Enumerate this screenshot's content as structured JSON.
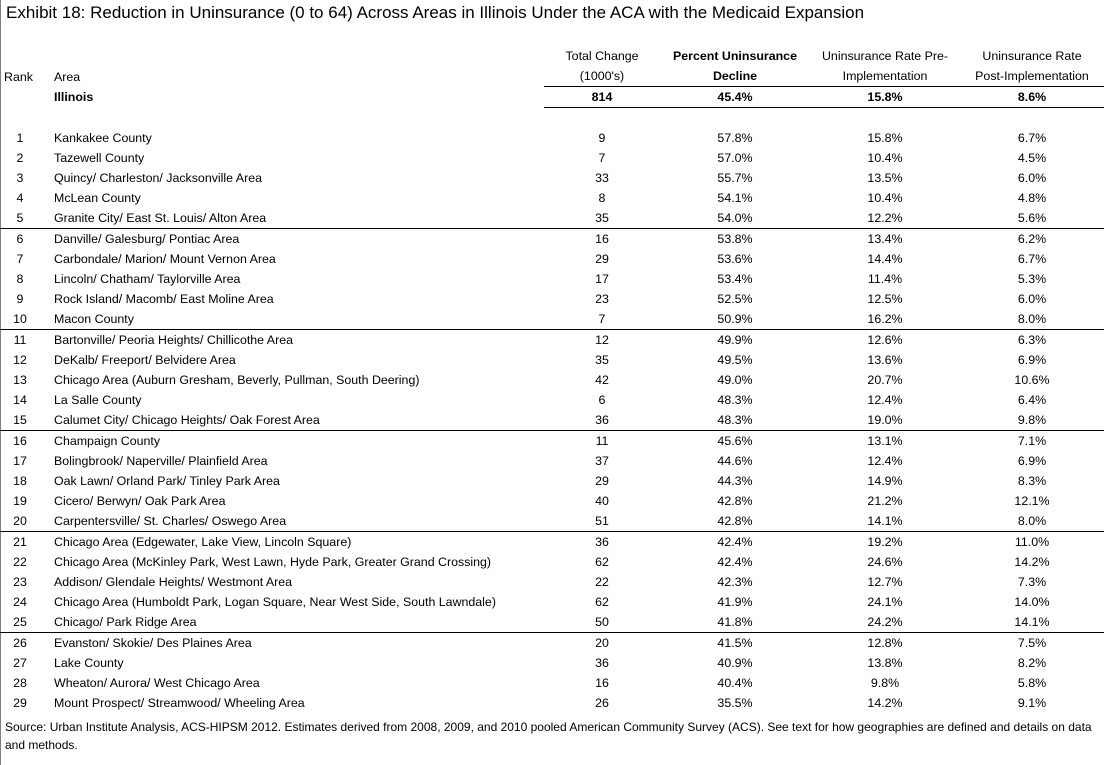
{
  "title": "Exhibit 18: Reduction in Uninsurance (0 to 64) Across Areas in Illinois Under the ACA with the Medicaid Expansion",
  "columns": {
    "rank": "Rank",
    "area": "Area",
    "total_change_1": "Total Change",
    "total_change_2": "(1000's)",
    "pct_decline_1": "Percent Uninsurance",
    "pct_decline_2": "Decline",
    "pre_1": "Uninsurance Rate Pre-",
    "pre_2": "Implementation",
    "post_1": "Uninsurance Rate",
    "post_2": "Post-Implementation"
  },
  "state_row": {
    "area": "Illinois",
    "total_change": "814",
    "pct_decline": "45.4%",
    "pre": "15.8%",
    "post": "8.6%"
  },
  "rows": [
    {
      "rank": "1",
      "area": "Kankakee County",
      "total_change": "9",
      "pct_decline": "57.8%",
      "pre": "15.8%",
      "post": "6.7%"
    },
    {
      "rank": "2",
      "area": "Tazewell County",
      "total_change": "7",
      "pct_decline": "57.0%",
      "pre": "10.4%",
      "post": "4.5%"
    },
    {
      "rank": "3",
      "area": "Quincy/ Charleston/ Jacksonville Area",
      "total_change": "33",
      "pct_decline": "55.7%",
      "pre": "13.5%",
      "post": "6.0%"
    },
    {
      "rank": "4",
      "area": "McLean County",
      "total_change": "8",
      "pct_decline": "54.1%",
      "pre": "10.4%",
      "post": "4.8%"
    },
    {
      "rank": "5",
      "area": "Granite City/ East St. Louis/ Alton Area",
      "total_change": "35",
      "pct_decline": "54.0%",
      "pre": "12.2%",
      "post": "5.6%"
    },
    {
      "rank": "6",
      "area": "Danville/ Galesburg/ Pontiac Area",
      "total_change": "16",
      "pct_decline": "53.8%",
      "pre": "13.4%",
      "post": "6.2%"
    },
    {
      "rank": "7",
      "area": "Carbondale/ Marion/ Mount Vernon Area",
      "total_change": "29",
      "pct_decline": "53.6%",
      "pre": "14.4%",
      "post": "6.7%"
    },
    {
      "rank": "8",
      "area": "Lincoln/ Chatham/ Taylorville Area",
      "total_change": "17",
      "pct_decline": "53.4%",
      "pre": "11.4%",
      "post": "5.3%"
    },
    {
      "rank": "9",
      "area": "Rock Island/ Macomb/ East Moline Area",
      "total_change": "23",
      "pct_decline": "52.5%",
      "pre": "12.5%",
      "post": "6.0%"
    },
    {
      "rank": "10",
      "area": "Macon County",
      "total_change": "7",
      "pct_decline": "50.9%",
      "pre": "16.2%",
      "post": "8.0%"
    },
    {
      "rank": "11",
      "area": "Bartonville/ Peoria Heights/ Chillicothe Area",
      "total_change": "12",
      "pct_decline": "49.9%",
      "pre": "12.6%",
      "post": "6.3%"
    },
    {
      "rank": "12",
      "area": "DeKalb/ Freeport/ Belvidere Area",
      "total_change": "35",
      "pct_decline": "49.5%",
      "pre": "13.6%",
      "post": "6.9%"
    },
    {
      "rank": "13",
      "area": "Chicago Area (Auburn Gresham, Beverly, Pullman, South Deering)",
      "total_change": "42",
      "pct_decline": "49.0%",
      "pre": "20.7%",
      "post": "10.6%"
    },
    {
      "rank": "14",
      "area": "La Salle County",
      "total_change": "6",
      "pct_decline": "48.3%",
      "pre": "12.4%",
      "post": "6.4%"
    },
    {
      "rank": "15",
      "area": "Calumet City/ Chicago Heights/ Oak Forest Area",
      "total_change": "36",
      "pct_decline": "48.3%",
      "pre": "19.0%",
      "post": "9.8%"
    },
    {
      "rank": "16",
      "area": "Champaign County",
      "total_change": "11",
      "pct_decline": "45.6%",
      "pre": "13.1%",
      "post": "7.1%"
    },
    {
      "rank": "17",
      "area": "Bolingbrook/ Naperville/ Plainfield Area",
      "total_change": "37",
      "pct_decline": "44.6%",
      "pre": "12.4%",
      "post": "6.9%"
    },
    {
      "rank": "18",
      "area": "Oak Lawn/ Orland Park/ Tinley Park Area",
      "total_change": "29",
      "pct_decline": "44.3%",
      "pre": "14.9%",
      "post": "8.3%"
    },
    {
      "rank": "19",
      "area": "Cicero/ Berwyn/ Oak Park Area",
      "total_change": "40",
      "pct_decline": "42.8%",
      "pre": "21.2%",
      "post": "12.1%"
    },
    {
      "rank": "20",
      "area": "Carpentersville/ St. Charles/ Oswego Area",
      "total_change": "51",
      "pct_decline": "42.8%",
      "pre": "14.1%",
      "post": "8.0%"
    },
    {
      "rank": "21",
      "area": "Chicago Area (Edgewater, Lake View, Lincoln Square)",
      "total_change": "36",
      "pct_decline": "42.4%",
      "pre": "19.2%",
      "post": "11.0%"
    },
    {
      "rank": "22",
      "area": "Chicago Area (McKinley Park, West Lawn, Hyde Park, Greater Grand Crossing)",
      "total_change": "62",
      "pct_decline": "42.4%",
      "pre": "24.6%",
      "post": "14.2%"
    },
    {
      "rank": "23",
      "area": "Addison/ Glendale Heights/ Westmont Area",
      "total_change": "22",
      "pct_decline": "42.3%",
      "pre": "12.7%",
      "post": "7.3%"
    },
    {
      "rank": "24",
      "area": "Chicago Area (Humboldt Park, Logan Square, Near West Side, South Lawndale)",
      "total_change": "62",
      "pct_decline": "41.9%",
      "pre": "24.1%",
      "post": "14.0%"
    },
    {
      "rank": "25",
      "area": "Chicago/ Park Ridge Area",
      "total_change": "50",
      "pct_decline": "41.8%",
      "pre": "24.2%",
      "post": "14.1%"
    },
    {
      "rank": "26",
      "area": "Evanston/ Skokie/ Des Plaines Area",
      "total_change": "20",
      "pct_decline": "41.5%",
      "pre": "12.8%",
      "post": "7.5%"
    },
    {
      "rank": "27",
      "area": "Lake County",
      "total_change": "36",
      "pct_decline": "40.9%",
      "pre": "13.8%",
      "post": "8.2%"
    },
    {
      "rank": "28",
      "area": "Wheaton/ Aurora/ West Chicago Area",
      "total_change": "16",
      "pct_decline": "40.4%",
      "pre": "9.8%",
      "post": "5.8%"
    },
    {
      "rank": "29",
      "area": "Mount Prospect/ Streamwood/ Wheeling Area",
      "total_change": "26",
      "pct_decline": "35.5%",
      "pre": "14.2%",
      "post": "9.1%"
    }
  ],
  "source_note": "Source: Urban Institute Analysis, ACS-HIPSM 2012. Estimates derived from 2008, 2009, and 2010 pooled American Community Survey (ACS). See text for how geographies are defined and details on data and methods."
}
